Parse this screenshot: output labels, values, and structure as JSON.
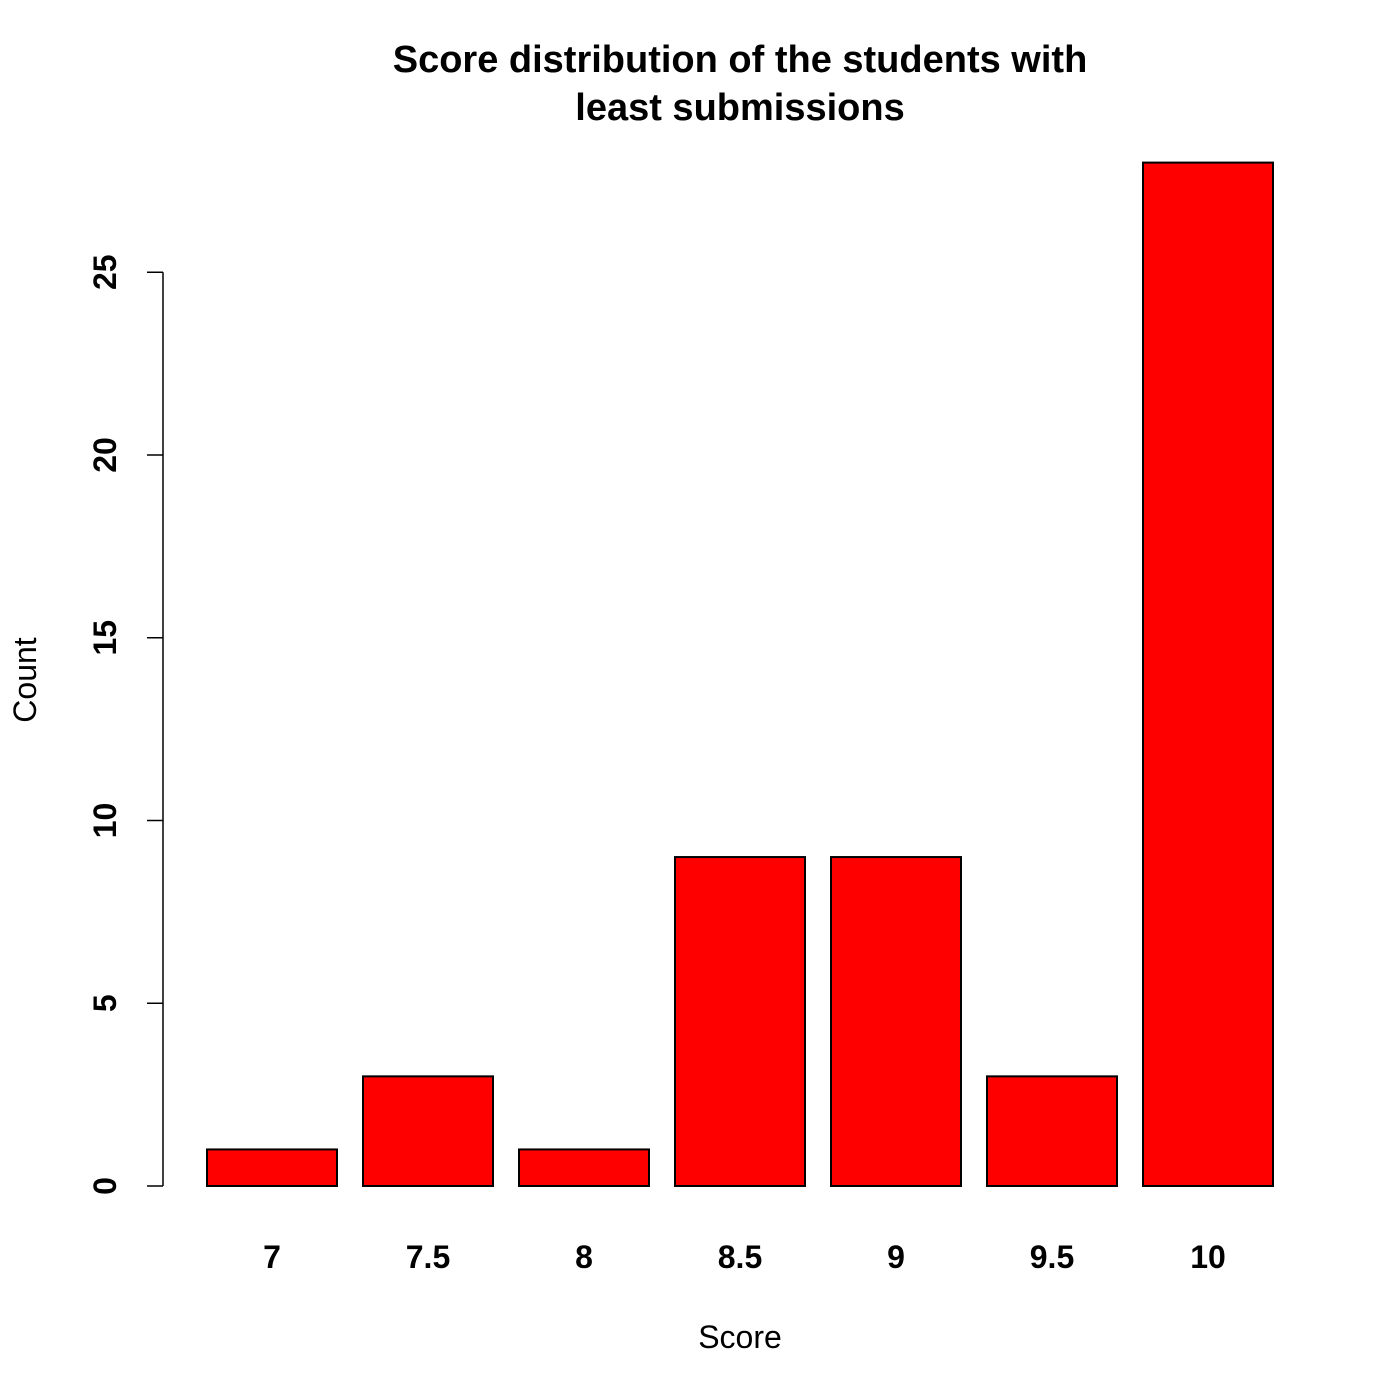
{
  "chart_data": {
    "type": "bar",
    "title_lines": [
      "Score distribution of the students with",
      "least submissions"
    ],
    "xlabel": "Score",
    "ylabel": "Count",
    "categories": [
      "7",
      "7.5",
      "8",
      "8.5",
      "9",
      "9.5",
      "10"
    ],
    "values": [
      1,
      3,
      1,
      9,
      9,
      3,
      28
    ],
    "yticks": [
      0,
      5,
      10,
      15,
      20,
      25
    ],
    "ylim": [
      0,
      28
    ],
    "grid": false,
    "legend": "none",
    "bar_color": "#ff0000",
    "bar_border_color": "#000000"
  }
}
